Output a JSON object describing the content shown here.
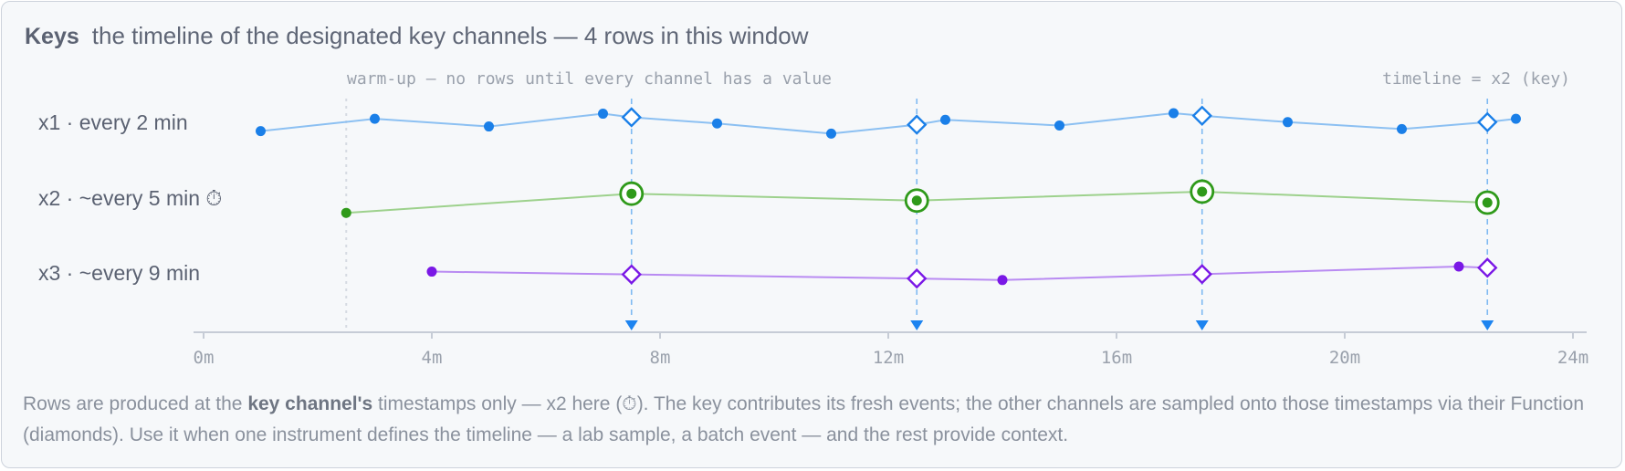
{
  "header": {
    "title": "Keys",
    "subtitle": "the timeline of the designated key channels — 4 rows in this window"
  },
  "annotations": {
    "warmup": "warm-up — no rows until every channel has a value",
    "timeline": "timeline = x2 (key)"
  },
  "footer": {
    "part1": "Rows are produced at the ",
    "bold": "key channel's",
    "part2": " timestamps only — x2 here (⏱). The key contributes its fresh events; the other channels are sampled onto those timestamps via their Function (diamonds). Use it when one instrument defines the timeline — a lab sample, a batch event — and the rest provide context."
  },
  "chart_data": {
    "type": "scatter",
    "title": "Keys",
    "subtitle": "the timeline of the designated key channels — 4 rows in this window",
    "x_unit": "minutes",
    "xlim": [
      0,
      24
    ],
    "x_ticks": [
      0,
      4,
      8,
      12,
      16,
      20,
      24
    ],
    "x_tick_labels": [
      "0m",
      "4m",
      "8m",
      "12m",
      "16m",
      "20m",
      "24m"
    ],
    "warmup_end": 2.5,
    "key_timestamps": [
      7.5,
      12.5,
      17.5,
      22.5
    ],
    "key_channel": "x2",
    "rows": [
      {
        "id": "x1",
        "label": "x1 · every 2 min",
        "color": "#1a7fe8",
        "line_color": "#8cc0f2",
        "points": [
          [
            1,
            0.3
          ],
          [
            3,
            0.78
          ],
          [
            5,
            0.48
          ],
          [
            7,
            0.98
          ],
          [
            9,
            0.6
          ],
          [
            11,
            0.2
          ],
          [
            13,
            0.74
          ],
          [
            15,
            0.52
          ],
          [
            17,
            1.0
          ],
          [
            19,
            0.65
          ],
          [
            21,
            0.38
          ],
          [
            23,
            0.78
          ]
        ],
        "sampled": [
          [
            7.5,
            0.84
          ],
          [
            12.5,
            0.55
          ],
          [
            17.5,
            0.9
          ],
          [
            22.5,
            0.65
          ]
        ]
      },
      {
        "id": "x2",
        "label": "x2 · ~every 5 min ⏱",
        "color": "#2f9a1a",
        "line_color": "#9dd18c",
        "points": [
          [
            2.5,
            0.1
          ]
        ],
        "key_events": [
          [
            7.5,
            0.85
          ],
          [
            12.5,
            0.58
          ],
          [
            17.5,
            0.93
          ],
          [
            22.5,
            0.5
          ]
        ]
      },
      {
        "id": "x3",
        "label": "x3 · ~every 9 min",
        "color": "#7a18e6",
        "line_color": "#b98bf2",
        "points": [
          [
            4,
            0.73
          ],
          [
            14,
            0.4
          ],
          [
            22,
            0.93
          ]
        ],
        "sampled": [
          [
            7.5,
            0.62
          ],
          [
            12.5,
            0.46
          ],
          [
            17.5,
            0.63
          ],
          [
            22.5,
            0.88
          ]
        ]
      }
    ]
  }
}
